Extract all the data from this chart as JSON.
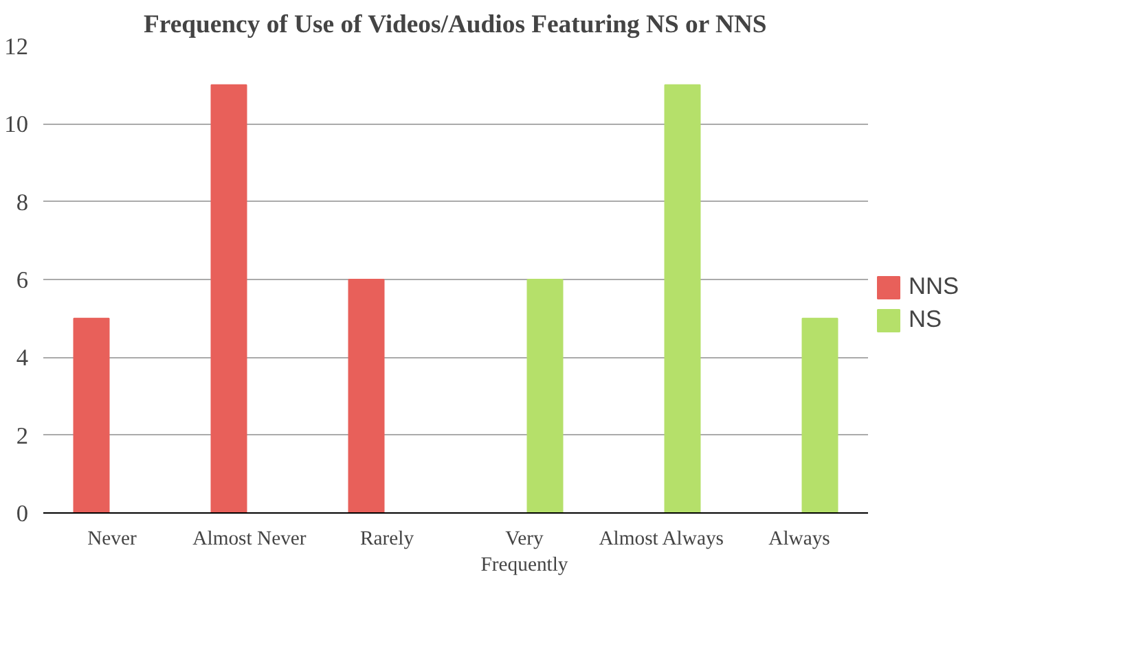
{
  "chart_data": {
    "type": "bar",
    "title": "Frequency of Use of Videos/Audios Featuring NS or NNS",
    "categories": [
      "Never",
      "Almost Never",
      "Rarely",
      "Very Frequently",
      "Almost Always",
      "Always"
    ],
    "series": [
      {
        "name": "NNS",
        "color": "#e8605a",
        "values": [
          5,
          11,
          6,
          0,
          0,
          0
        ]
      },
      {
        "name": "NS",
        "color": "#b5e06a",
        "values": [
          0,
          0,
          0,
          6,
          11,
          5
        ]
      }
    ],
    "ylim": [
      0,
      12
    ],
    "yticks": [
      0,
      2,
      4,
      6,
      8,
      10,
      12
    ],
    "grid": "y",
    "legend": "right"
  }
}
